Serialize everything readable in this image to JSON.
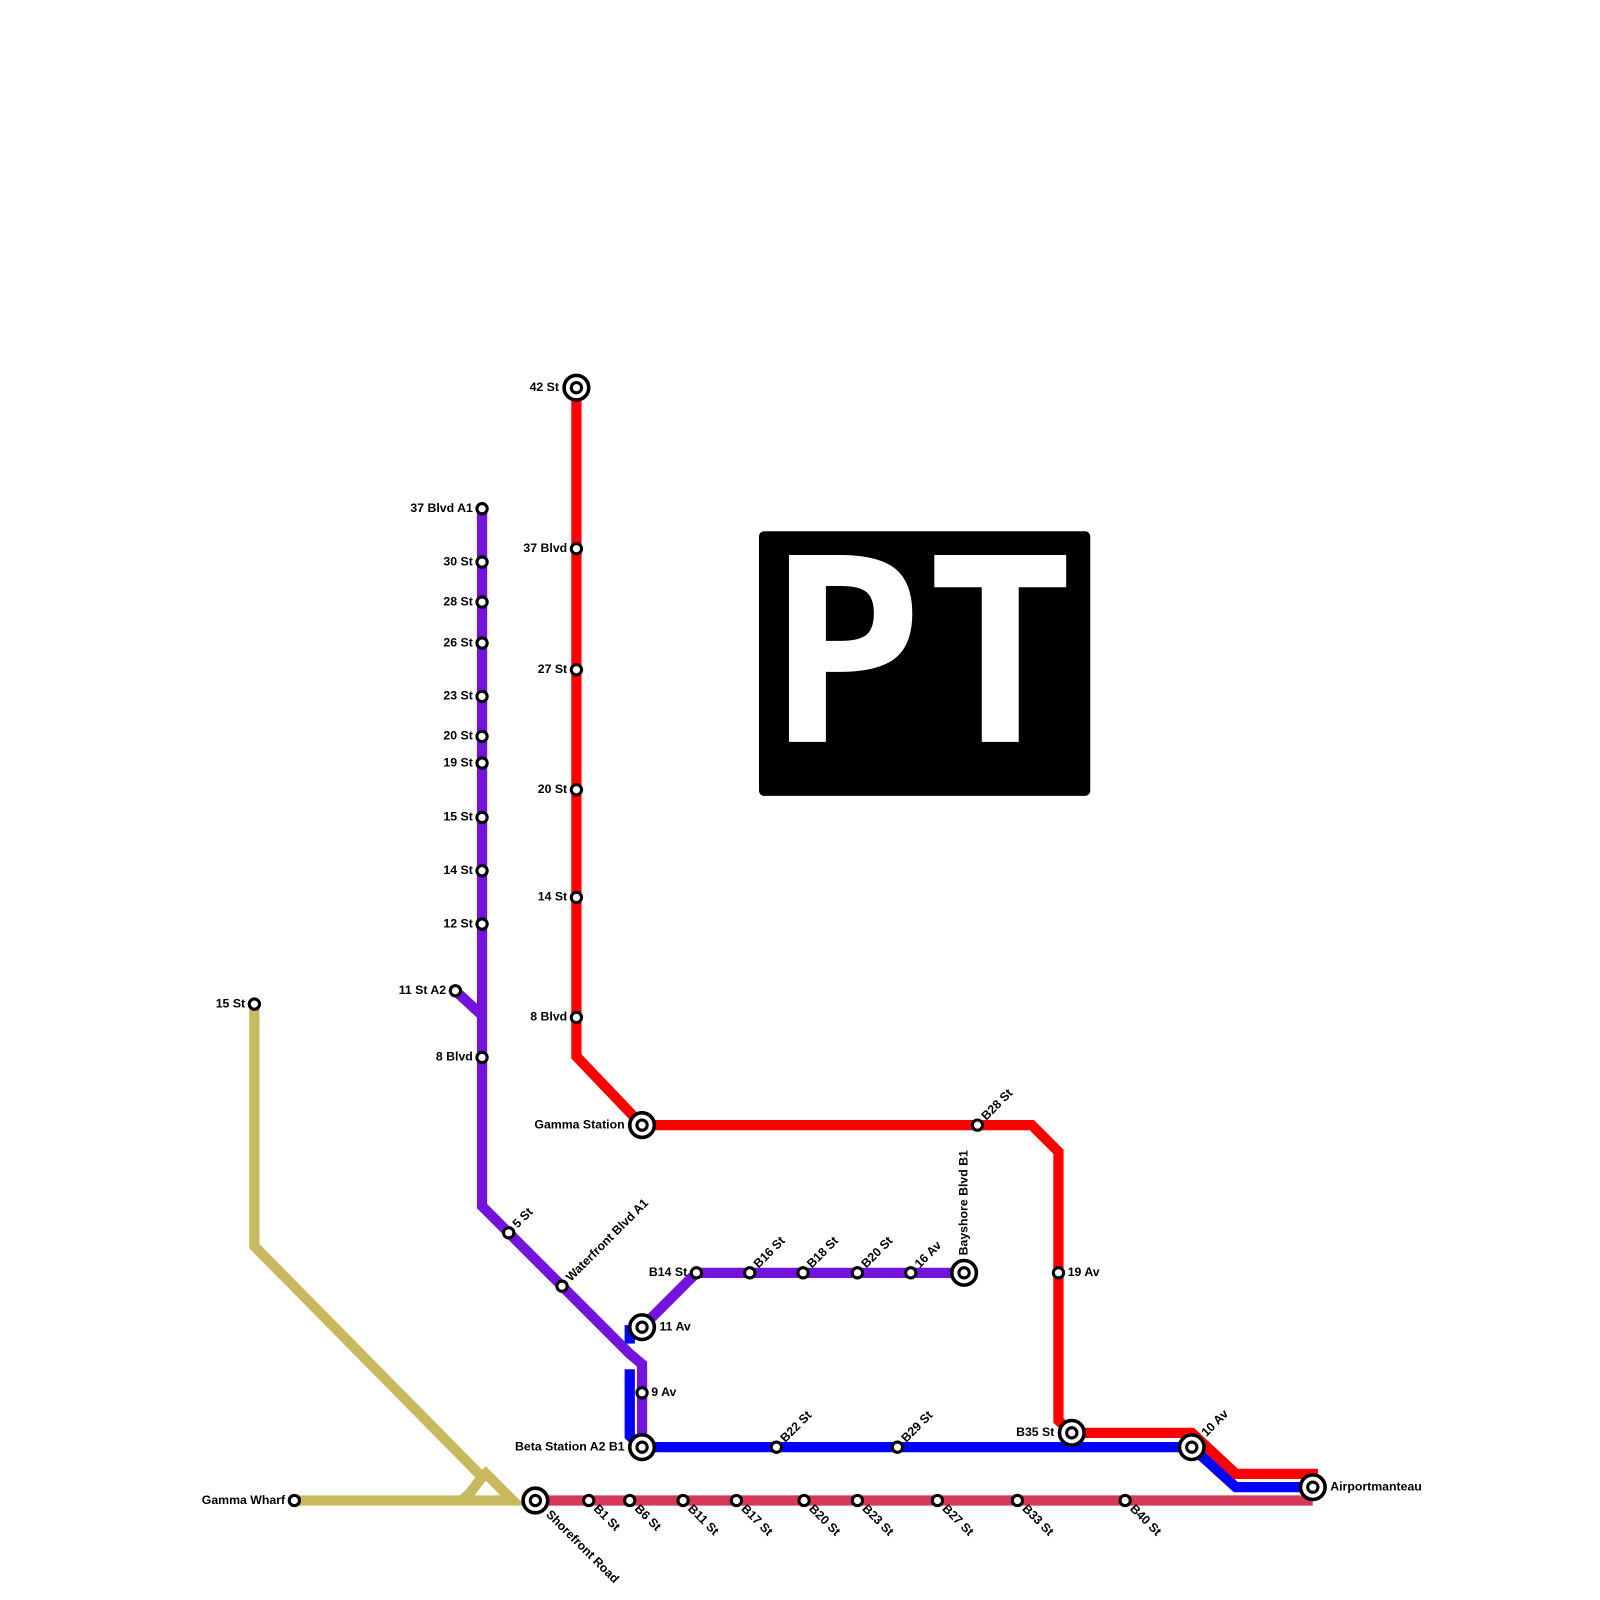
{
  "logo": "PT",
  "stations": [
    {
      "label": "42 St"
    },
    {
      "label": "37 Blvd"
    },
    {
      "label": "27 St"
    },
    {
      "label": "20 St"
    },
    {
      "label": "14 St"
    },
    {
      "label": "8 Blvd"
    },
    {
      "label": "Gamma Station"
    },
    {
      "label": "B28 St"
    },
    {
      "label": "19 Av"
    },
    {
      "label": "B35 St"
    },
    {
      "label": "10 Av"
    },
    {
      "label": "Airportmanteau"
    },
    {
      "label": "37 Blvd A1"
    },
    {
      "label": "30 St"
    },
    {
      "label": "28 St"
    },
    {
      "label": "26 St"
    },
    {
      "label": "23 St"
    },
    {
      "label": "20 St"
    },
    {
      "label": "19 St"
    },
    {
      "label": "15 St"
    },
    {
      "label": "14 St"
    },
    {
      "label": "12 St"
    },
    {
      "label": "11 St A2"
    },
    {
      "label": "8 Blvd"
    },
    {
      "label": "5 St"
    },
    {
      "label": "Waterfront Blvd A1"
    },
    {
      "label": "11 Av"
    },
    {
      "label": "9 Av"
    },
    {
      "label": "B14 St"
    },
    {
      "label": "B16 St"
    },
    {
      "label": "B18 St"
    },
    {
      "label": "B20 St"
    },
    {
      "label": "16 Av"
    },
    {
      "label": "Bayshore Blvd B1"
    },
    {
      "label": "Beta Station A2 B1"
    },
    {
      "label": "B22 St"
    },
    {
      "label": "B29 St"
    },
    {
      "label": "Shorefront Road"
    },
    {
      "label": "B1 St"
    },
    {
      "label": "B6 St"
    },
    {
      "label": "B11 St"
    },
    {
      "label": "B17 St"
    },
    {
      "label": "B20 St"
    },
    {
      "label": "B23 St"
    },
    {
      "label": "B27 St"
    },
    {
      "label": "B33 St"
    },
    {
      "label": "B40 St"
    },
    {
      "label": "15 St"
    },
    {
      "label": "Gamma Wharf"
    }
  ]
}
